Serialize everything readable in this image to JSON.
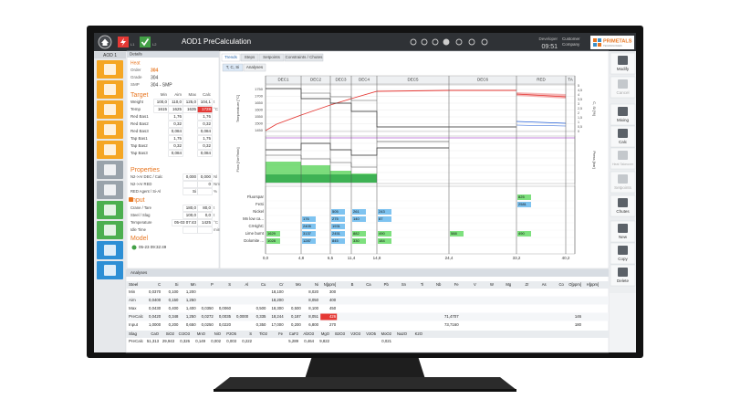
{
  "topbar": {
    "title": "AOD1 PreCalculation",
    "level1": "L1",
    "level2": "L2",
    "user": "Developer",
    "time": "09:51",
    "customer": [
      "Customer",
      "Company"
    ],
    "brand": "PRIMETALS",
    "brand_sub": "TECHNOLOGIES"
  },
  "nav": {
    "unit": "AOD 1"
  },
  "details": {
    "header": "Details",
    "heat": "Heat",
    "fields": [
      {
        "label": "Order",
        "value": "304"
      },
      {
        "label": "Grade",
        "value": "304"
      },
      {
        "label": "SMP",
        "value": "304 - SMP"
      }
    ],
    "target": {
      "title": "Target",
      "columns": [
        "Min",
        "Aim",
        "Max",
        "Calc"
      ],
      "rows": [
        {
          "label": "Weight",
          "cells": [
            "100,0",
            "110,0",
            "125,0",
            "104,1"
          ],
          "unit": "t"
        },
        {
          "label": "Temp",
          "cells": [
            "1615",
            "1625",
            "1635",
            "1728"
          ],
          "unit": "°C"
        },
        {
          "label": "Red Bas1",
          "cells": [
            null,
            "1,76",
            null,
            "1,76"
          ]
        },
        {
          "label": "Red Bas2",
          "cells": [
            null,
            "0,32",
            null,
            "0,32"
          ]
        },
        {
          "label": "Red Bas3",
          "cells": [
            null,
            "0,084",
            null,
            "0,084"
          ]
        },
        {
          "label": "Tap Bas1",
          "cells": [
            null,
            "1,75",
            null,
            "1,75"
          ]
        },
        {
          "label": "Tap Bas2",
          "cells": [
            null,
            "0,32",
            null,
            "0,32"
          ]
        },
        {
          "label": "Tap Bas3",
          "cells": [
            null,
            "0,084",
            null,
            "0,084"
          ]
        }
      ]
    },
    "properties": {
      "title": "Properties",
      "rows": [
        {
          "label": "N2->Ar DEC / Calc",
          "cells": [
            "0,000",
            "0,000"
          ],
          "unit": "Nl"
        },
        {
          "label": "N2->Ar RED",
          "cells": [
            null,
            "0"
          ],
          "unit": "Nm³"
        },
        {
          "label": "RED Agent / Si-Al",
          "cells": [
            "Si",
            null
          ],
          "unit": "%"
        }
      ]
    },
    "input": {
      "title": "Input",
      "rows": [
        {
          "label": "Crane / Tare",
          "cells": [
            "180,0",
            "80,0"
          ],
          "unit": "t"
        },
        {
          "label": "Steel / Slag",
          "cells": [
            "100,0",
            "0,0"
          ],
          "unit": "t"
        },
        {
          "label": "Temperature",
          "cells": [
            "05-03 07:43",
            "1425"
          ],
          "unit": "°C"
        },
        {
          "label": "Idle Time",
          "cells": [
            null,
            null
          ],
          "unit": "min"
        }
      ]
    },
    "model": {
      "title": "Model",
      "timestamp": "05-23 09:32:49"
    }
  },
  "tabs": [
    "Trends",
    "Steps",
    "Setpoints",
    "Constraints / Chutes"
  ],
  "subtabs": [
    "T, C, Si",
    "Analyses"
  ],
  "trends": {
    "phases": [
      "DEC1",
      "DEC2",
      "DEC3",
      "DEC4",
      "DEC5",
      "DEC6",
      "RED",
      "TA"
    ],
    "temp_axis": "Temperature [°C]",
    "temp_ticks": [
      "1750",
      "1700",
      "1650",
      "1600",
      "1550",
      "1500",
      "1450"
    ],
    "cs_axis": "C, Si [%]",
    "cs_ticks": [
      "5",
      "4,5",
      "4",
      "3,5",
      "3",
      "2,5",
      "2",
      "1,5",
      "1",
      "0,5",
      "0"
    ],
    "flow_axis": "Flow [Nm³/min]",
    "press_axis": "Press [bar]",
    "x_ticks": [
      "0,0",
      "4,8",
      "6,5",
      "11,4",
      "14,8",
      "24,4",
      "33,2",
      "40,2"
    ],
    "additions": [
      {
        "label": "Fluorspar",
        "cells": [
          null,
          null,
          null,
          null,
          null,
          null,
          "825"
        ]
      },
      {
        "label": "FeSi",
        "cells": [
          null,
          null,
          null,
          null,
          null,
          null,
          "2581"
        ]
      },
      {
        "label": "Nickel",
        "cells": [
          null,
          null,
          "505",
          "261",
          "243",
          null,
          null
        ]
      },
      {
        "label": "Mn low ca...",
        "cells": [
          null,
          "176",
          "275",
          "140",
          "87",
          null,
          null
        ]
      },
      {
        "label": "CrHighC",
        "cells": [
          null,
          "2405",
          "1931",
          null,
          null,
          null,
          null
        ]
      },
      {
        "label": "Lime burnt",
        "cells": [
          "1629",
          "3137",
          "2451",
          "882",
          "490",
          "588",
          "490"
        ]
      },
      {
        "label": "Dolomite ...",
        "cells": [
          "1028",
          "1287",
          "845",
          "330",
          "184",
          null,
          null
        ]
      }
    ]
  },
  "buttons": [
    "Modify",
    "Cancel",
    "Mixing",
    "Calc",
    "Heat Takeover",
    "Setpoints",
    "Chutes",
    "New",
    "Copy",
    "Delete"
  ],
  "analyses": {
    "title": "Analyses",
    "steel": {
      "label": "Steel",
      "columns": [
        "C",
        "Si",
        "Mn",
        "P",
        "S",
        "Al",
        "Cu",
        "Cr",
        "Mo",
        "Ni",
        "N[ppm]",
        "B",
        "Ca",
        "Pb",
        "Sn",
        "Ti",
        "Nb",
        "Fe",
        "V",
        "W",
        "Mg",
        "Zr",
        "As",
        "Co",
        "O[ppm]",
        "H[ppm]"
      ],
      "rows": [
        {
          "label": "Min",
          "cells": [
            "0,0370",
            "0,100",
            "1,200",
            null,
            null,
            null,
            null,
            "18,100",
            null,
            "8,020",
            "300",
            null,
            null,
            null,
            null,
            null,
            null,
            null,
            null,
            null,
            null,
            null,
            null,
            null,
            null,
            null
          ]
        },
        {
          "label": "Aim",
          "cells": [
            "0,0400",
            "0,150",
            "1,250",
            null,
            null,
            null,
            null,
            "18,200",
            null,
            "8,050",
            "400",
            null,
            null,
            null,
            null,
            null,
            null,
            null,
            null,
            null,
            null,
            null,
            null,
            null,
            null,
            null
          ]
        },
        {
          "label": "Max",
          "cells": [
            "0,0430",
            "0,400",
            "1,400",
            "0,0350",
            "0,0060",
            null,
            "0,500",
            "18,300",
            "0,500",
            "8,100",
            "450",
            null,
            null,
            null,
            null,
            null,
            null,
            null,
            null,
            null,
            null,
            null,
            null,
            null,
            null,
            null
          ]
        },
        {
          "label": "PreCalc",
          "cells": [
            "0,0420",
            "0,348",
            "1,250",
            "0,0272",
            "0,0035",
            "0,0000",
            "0,335",
            "18,244",
            "0,187",
            "8,051",
            "426",
            null,
            null,
            null,
            null,
            null,
            null,
            "71,4707",
            null,
            null,
            null,
            null,
            null,
            null,
            "146",
            null
          ]
        },
        {
          "label": "Input",
          "cells": [
            "1,0000",
            "0,200",
            "0,650",
            "0,0250",
            "0,0220",
            null,
            "0,350",
            "17,000",
            "0,200",
            "6,800",
            "270",
            null,
            null,
            null,
            null,
            null,
            null,
            "73,7160",
            null,
            null,
            null,
            null,
            null,
            null,
            "180",
            null
          ]
        }
      ]
    },
    "slag": {
      "label": "Slag",
      "columns": [
        "CaO",
        "SiO2",
        "Cr2O3",
        "MnO",
        "NiO",
        "P2O5",
        "S",
        "TiO2",
        "Fe",
        "CaF2",
        "Al2O3",
        "MgO",
        "B2O3",
        "V2O3",
        "V2O5",
        "MoO2",
        "Na2O",
        "K2O"
      ],
      "rows": [
        {
          "label": "PreCalc",
          "cells": [
            "51,313",
            "29,943",
            "0,326",
            "0,149",
            "0,002",
            "0,003",
            "0,222",
            null,
            null,
            "5,289",
            "0,464",
            "9,822",
            null,
            null,
            null,
            "0,021",
            null,
            null
          ]
        }
      ]
    }
  }
}
